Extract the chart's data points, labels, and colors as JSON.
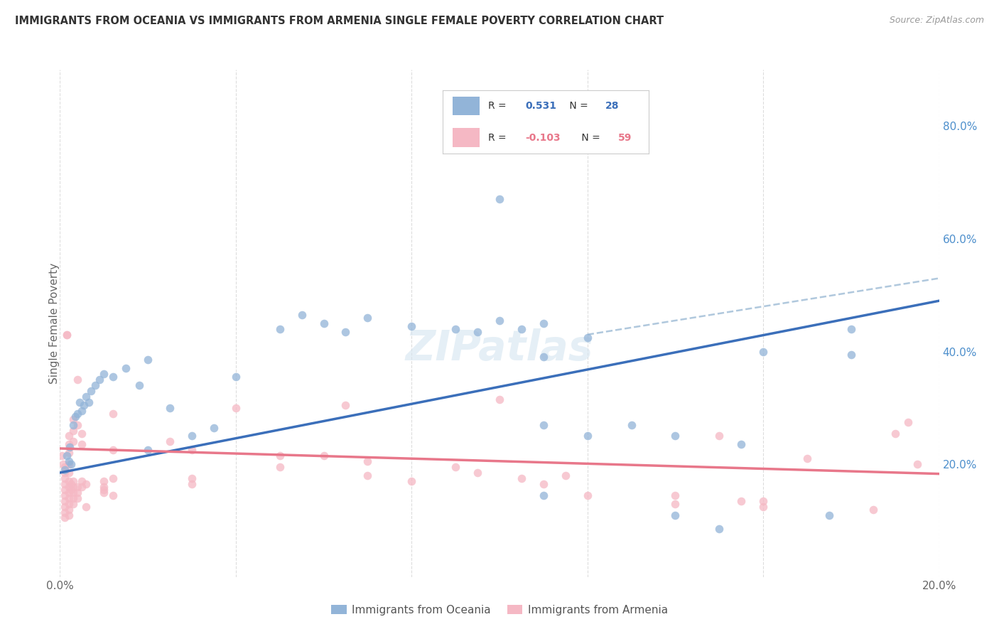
{
  "title": "IMMIGRANTS FROM OCEANIA VS IMMIGRANTS FROM ARMENIA SINGLE FEMALE POVERTY CORRELATION CHART",
  "source": "Source: ZipAtlas.com",
  "ylabel": "Single Female Poverty",
  "right_yticks": [
    "80.0%",
    "60.0%",
    "40.0%",
    "20.0%"
  ],
  "right_ytick_vals": [
    0.8,
    0.6,
    0.4,
    0.2
  ],
  "legend_blue_r": "0.531",
  "legend_blue_n": "28",
  "legend_pink_r": "-0.103",
  "legend_pink_n": "59",
  "legend_label_blue": "Immigrants from Oceania",
  "legend_label_pink": "Immigrants from Armenia",
  "blue_color": "#92b4d8",
  "pink_color": "#f5b8c4",
  "blue_line_color": "#3b6fba",
  "pink_line_color": "#e8778a",
  "dashed_line_color": "#b0c8dd",
  "right_axis_color": "#4d8fcc",
  "watermark_color": "#d5e5f0",
  "blue_scatter": [
    [
      0.001,
      0.19
    ],
    [
      0.0015,
      0.215
    ],
    [
      0.002,
      0.205
    ],
    [
      0.0022,
      0.23
    ],
    [
      0.0025,
      0.2
    ],
    [
      0.003,
      0.27
    ],
    [
      0.0035,
      0.285
    ],
    [
      0.004,
      0.29
    ],
    [
      0.0045,
      0.31
    ],
    [
      0.005,
      0.295
    ],
    [
      0.0055,
      0.305
    ],
    [
      0.006,
      0.32
    ],
    [
      0.0065,
      0.31
    ],
    [
      0.007,
      0.33
    ],
    [
      0.008,
      0.34
    ],
    [
      0.009,
      0.35
    ],
    [
      0.01,
      0.36
    ],
    [
      0.012,
      0.355
    ],
    [
      0.015,
      0.37
    ],
    [
      0.018,
      0.34
    ],
    [
      0.02,
      0.225
    ],
    [
      0.025,
      0.3
    ],
    [
      0.03,
      0.25
    ],
    [
      0.035,
      0.265
    ],
    [
      0.04,
      0.355
    ],
    [
      0.05,
      0.44
    ],
    [
      0.055,
      0.465
    ],
    [
      0.06,
      0.45
    ],
    [
      0.065,
      0.435
    ],
    [
      0.07,
      0.46
    ],
    [
      0.08,
      0.445
    ],
    [
      0.09,
      0.44
    ],
    [
      0.095,
      0.435
    ],
    [
      0.1,
      0.455
    ],
    [
      0.105,
      0.44
    ],
    [
      0.11,
      0.45
    ],
    [
      0.11,
      0.39
    ],
    [
      0.11,
      0.27
    ],
    [
      0.11,
      0.145
    ],
    [
      0.12,
      0.425
    ],
    [
      0.12,
      0.25
    ],
    [
      0.13,
      0.27
    ],
    [
      0.14,
      0.25
    ],
    [
      0.14,
      0.11
    ],
    [
      0.15,
      0.085
    ],
    [
      0.155,
      0.235
    ],
    [
      0.16,
      0.4
    ],
    [
      0.175,
      0.11
    ],
    [
      0.18,
      0.44
    ],
    [
      0.18,
      0.395
    ],
    [
      0.1,
      0.67
    ],
    [
      0.02,
      0.385
    ]
  ],
  "pink_scatter": [
    [
      0.0005,
      0.215
    ],
    [
      0.0008,
      0.2
    ],
    [
      0.001,
      0.195
    ],
    [
      0.001,
      0.185
    ],
    [
      0.001,
      0.175
    ],
    [
      0.001,
      0.165
    ],
    [
      0.001,
      0.155
    ],
    [
      0.001,
      0.145
    ],
    [
      0.001,
      0.135
    ],
    [
      0.001,
      0.125
    ],
    [
      0.001,
      0.115
    ],
    [
      0.001,
      0.105
    ],
    [
      0.0015,
      0.43
    ],
    [
      0.0015,
      0.43
    ],
    [
      0.002,
      0.25
    ],
    [
      0.002,
      0.235
    ],
    [
      0.002,
      0.22
    ],
    [
      0.002,
      0.2
    ],
    [
      0.002,
      0.185
    ],
    [
      0.002,
      0.17
    ],
    [
      0.002,
      0.16
    ],
    [
      0.002,
      0.15
    ],
    [
      0.002,
      0.14
    ],
    [
      0.002,
      0.13
    ],
    [
      0.002,
      0.12
    ],
    [
      0.002,
      0.11
    ],
    [
      0.0025,
      0.165
    ],
    [
      0.0025,
      0.155
    ],
    [
      0.003,
      0.28
    ],
    [
      0.003,
      0.26
    ],
    [
      0.003,
      0.24
    ],
    [
      0.003,
      0.17
    ],
    [
      0.003,
      0.16
    ],
    [
      0.003,
      0.15
    ],
    [
      0.003,
      0.14
    ],
    [
      0.003,
      0.13
    ],
    [
      0.004,
      0.35
    ],
    [
      0.004,
      0.27
    ],
    [
      0.004,
      0.16
    ],
    [
      0.004,
      0.15
    ],
    [
      0.004,
      0.14
    ],
    [
      0.005,
      0.255
    ],
    [
      0.005,
      0.235
    ],
    [
      0.005,
      0.17
    ],
    [
      0.005,
      0.16
    ],
    [
      0.006,
      0.165
    ],
    [
      0.006,
      0.125
    ],
    [
      0.01,
      0.17
    ],
    [
      0.01,
      0.16
    ],
    [
      0.01,
      0.155
    ],
    [
      0.01,
      0.15
    ],
    [
      0.012,
      0.29
    ],
    [
      0.012,
      0.225
    ],
    [
      0.012,
      0.175
    ],
    [
      0.012,
      0.145
    ],
    [
      0.025,
      0.24
    ],
    [
      0.03,
      0.225
    ],
    [
      0.03,
      0.175
    ],
    [
      0.03,
      0.165
    ],
    [
      0.04,
      0.3
    ],
    [
      0.05,
      0.215
    ],
    [
      0.05,
      0.195
    ],
    [
      0.06,
      0.215
    ],
    [
      0.065,
      0.305
    ],
    [
      0.07,
      0.205
    ],
    [
      0.07,
      0.18
    ],
    [
      0.08,
      0.17
    ],
    [
      0.09,
      0.195
    ],
    [
      0.095,
      0.185
    ],
    [
      0.1,
      0.315
    ],
    [
      0.105,
      0.175
    ],
    [
      0.11,
      0.165
    ],
    [
      0.115,
      0.18
    ],
    [
      0.12,
      0.145
    ],
    [
      0.14,
      0.145
    ],
    [
      0.14,
      0.13
    ],
    [
      0.15,
      0.25
    ],
    [
      0.155,
      0.135
    ],
    [
      0.16,
      0.135
    ],
    [
      0.16,
      0.125
    ],
    [
      0.17,
      0.21
    ],
    [
      0.185,
      0.12
    ],
    [
      0.19,
      0.255
    ],
    [
      0.193,
      0.275
    ],
    [
      0.195,
      0.2
    ]
  ],
  "xlim": [
    0.0,
    0.2
  ],
  "ylim": [
    0.0,
    0.9
  ],
  "blue_trend_x": [
    0.0,
    0.2
  ],
  "blue_trend_y": [
    0.185,
    0.49
  ],
  "pink_trend_x": [
    0.0,
    0.2
  ],
  "pink_trend_y": [
    0.228,
    0.183
  ],
  "dashed_trend_x": [
    0.12,
    0.2
  ],
  "dashed_trend_y": [
    0.43,
    0.53
  ],
  "xtick_positions": [
    0.0,
    0.04,
    0.08,
    0.12,
    0.16,
    0.2
  ],
  "xtick_labels": [
    "0.0%",
    "",
    "",
    "",
    "",
    "20.0%"
  ]
}
